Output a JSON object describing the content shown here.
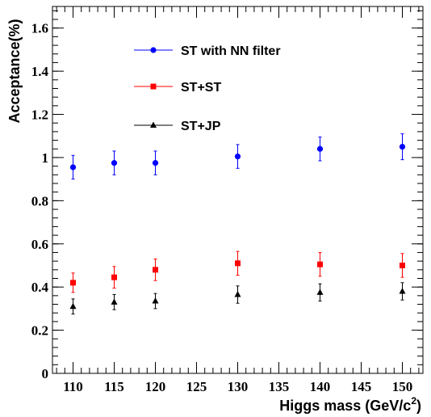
{
  "chart_data": {
    "type": "scatter",
    "xlabel": "Higgs mass (GeV/c",
    "xlabel_superscript": "2",
    "xlabel_close": ")",
    "ylabel": "Acceptance(%)",
    "xlim": [
      107.5,
      152.5
    ],
    "ylim": [
      0,
      1.7
    ],
    "xticks": [
      110,
      115,
      120,
      125,
      130,
      135,
      140,
      145,
      150
    ],
    "yticks": [
      0,
      0.2,
      0.4,
      0.6,
      0.8,
      1,
      1.2,
      1.4,
      1.6
    ],
    "ytick_labels": [
      "0",
      "0.2",
      "0.4",
      "0.6",
      "0.8",
      "1",
      "1.2",
      "1.4",
      "1.6"
    ],
    "legend_position": "top-center",
    "series": [
      {
        "name": "ST with NN filter",
        "color": "#0000ff",
        "marker": "circle",
        "x": [
          110,
          115,
          120,
          130,
          140,
          150
        ],
        "y": [
          0.955,
          0.975,
          0.975,
          1.005,
          1.04,
          1.05
        ],
        "err": [
          0.055,
          0.055,
          0.055,
          0.055,
          0.055,
          0.06
        ]
      },
      {
        "name": "ST+ST",
        "color": "#ff0000",
        "marker": "square",
        "x": [
          110,
          115,
          120,
          130,
          140,
          150
        ],
        "y": [
          0.42,
          0.445,
          0.48,
          0.51,
          0.505,
          0.5
        ],
        "err": [
          0.045,
          0.05,
          0.05,
          0.055,
          0.055,
          0.055
        ]
      },
      {
        "name": "ST+JP",
        "color": "#000000",
        "marker": "triangle",
        "x": [
          110,
          115,
          120,
          130,
          140,
          150
        ],
        "y": [
          0.31,
          0.33,
          0.335,
          0.365,
          0.375,
          0.38
        ],
        "err": [
          0.035,
          0.035,
          0.035,
          0.04,
          0.04,
          0.04
        ]
      }
    ]
  }
}
